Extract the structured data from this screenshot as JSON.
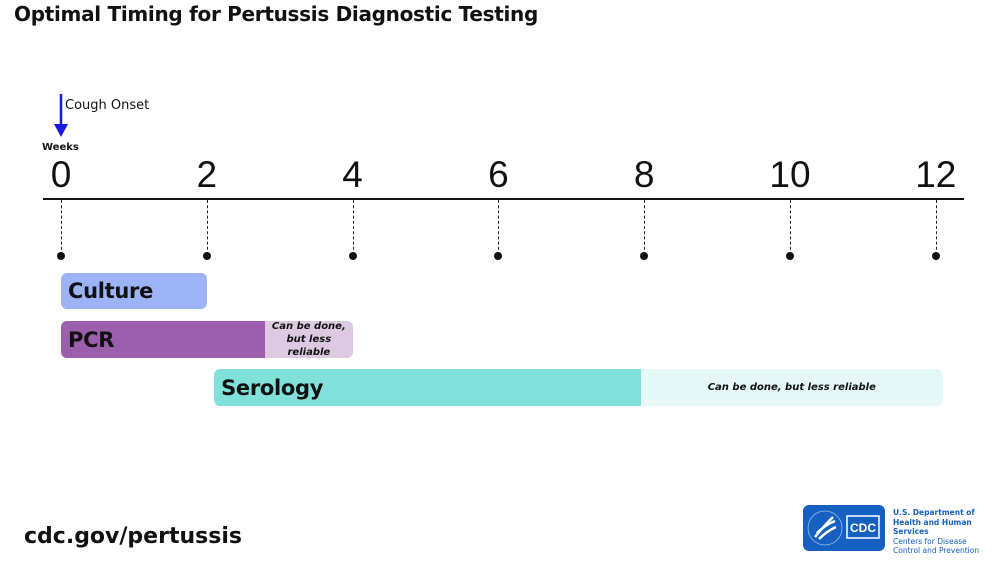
{
  "title": "Optimal Timing for Pertussis Diagnostic Testing",
  "onset": {
    "label": "Cough Onset",
    "week": 0,
    "arrow_color": "#1a1adf"
  },
  "axis": {
    "label": "Weeks",
    "ticks": [
      0,
      2,
      4,
      6,
      8,
      10,
      12
    ],
    "range": [
      0,
      12
    ]
  },
  "tests": [
    {
      "name": "Culture",
      "start": 0,
      "optimal_end": 2,
      "reliable_end": null,
      "color": "#9db3f7",
      "note": ""
    },
    {
      "name": "PCR",
      "start": 0,
      "optimal_end": 2.8,
      "reliable_end": 4,
      "color": "#9b5fae",
      "light_color": "#ddc9e1",
      "note_line1": "Can be done,",
      "note_line2": "but less reliable"
    },
    {
      "name": "Serology",
      "start": 2.1,
      "optimal_end": 7.95,
      "reliable_end": 12.1,
      "color": "#80e1da",
      "light_color": "#e5f7f6",
      "note": "Can be done, but less reliable"
    }
  ],
  "footer": {
    "url": "cdc.gov/pertussis",
    "logo_text": "CDC",
    "org_line1": "U.S. Department of",
    "org_line2": "Health and Human Services",
    "org_line3": "Centers for Disease",
    "org_line4": "Control and Prevention"
  }
}
